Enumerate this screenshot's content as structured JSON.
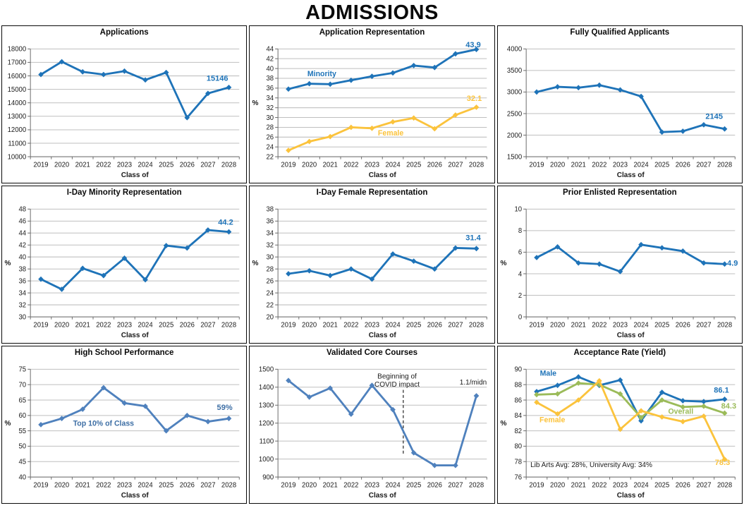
{
  "page_title": "ADMISSIONS",
  "palette": {
    "bright_blue": "#1E73B8",
    "muted_blue": "#4F81BD",
    "gold": "#FBC33C",
    "green": "#9BBB59",
    "gridline": "#BFBFBF",
    "axis": "#6E6E6E",
    "text": "#1a1a1a"
  },
  "chart_data": [
    {
      "type": "line",
      "title": "Applications",
      "xlabel": "Class of",
      "ylabel": "",
      "ylim": [
        10000,
        18000
      ],
      "ystep": 1000,
      "grid": true,
      "categories": [
        "2019",
        "2020",
        "2021",
        "2022",
        "2023",
        "2024",
        "2025",
        "2026",
        "2027",
        "2028"
      ],
      "series": [
        {
          "name": "Applications",
          "color": "#1E73B8",
          "values": [
            16100,
            17050,
            16300,
            16100,
            16350,
            15700,
            16250,
            12900,
            14700,
            15146
          ]
        }
      ],
      "texts": [
        {
          "text": "15146",
          "x": 8.45,
          "y": 15620,
          "color": "#1E73B8",
          "size": 11
        }
      ]
    },
    {
      "type": "line",
      "title": "Application Representation",
      "xlabel": "Class of",
      "ylabel": "%",
      "ylim": [
        22,
        44
      ],
      "ystep": 2,
      "grid": true,
      "categories": [
        "2019",
        "2020",
        "2021",
        "2022",
        "2023",
        "2024",
        "2025",
        "2026",
        "2027",
        "2028"
      ],
      "series": [
        {
          "name": "Minority",
          "color": "#1E73B8",
          "values": [
            35.8,
            36.9,
            36.8,
            37.6,
            38.4,
            39.1,
            40.6,
            40.2,
            43,
            43.9
          ]
        },
        {
          "name": "Female",
          "color": "#FBC33C",
          "values": [
            23.3,
            25.1,
            26.1,
            28,
            27.8,
            29.1,
            29.9,
            27.7,
            30.5,
            32.1
          ]
        }
      ],
      "texts": [
        {
          "text": "Minority",
          "x": 1.6,
          "y": 38.4,
          "color": "#1E73B8"
        },
        {
          "text": "Female",
          "x": 4.9,
          "y": 26.3,
          "color": "#FBC33C"
        },
        {
          "text": "43.9",
          "x": 8.85,
          "y": 44.35,
          "color": "#1E73B8",
          "size": 11
        },
        {
          "text": "32.1",
          "x": 8.9,
          "y": 33.4,
          "color": "#FBC33C",
          "size": 11
        }
      ]
    },
    {
      "type": "line",
      "title": "Fully Qualified Applicants",
      "xlabel": "Class of",
      "ylabel": "",
      "ylim": [
        1500,
        4000
      ],
      "ystep": 500,
      "grid": true,
      "categories": [
        "2019",
        "2020",
        "2021",
        "2022",
        "2023",
        "2024",
        "2025",
        "2026",
        "2027",
        "2028"
      ],
      "series": [
        {
          "name": "Fully Qualified Applicants",
          "color": "#1E73B8",
          "values": [
            3000,
            3120,
            3100,
            3160,
            3050,
            2900,
            2070,
            2090,
            2240,
            2145
          ]
        }
      ],
      "texts": [
        {
          "text": "2145",
          "x": 8.5,
          "y": 2380,
          "color": "#1E73B8",
          "size": 11
        }
      ]
    },
    {
      "type": "line",
      "title": "I-Day Minority Representation",
      "xlabel": "Class of",
      "ylabel": "%",
      "ylim": [
        30,
        48
      ],
      "ystep": 2,
      "grid": true,
      "categories": [
        "2019",
        "2020",
        "2021",
        "2022",
        "2023",
        "2024",
        "2025",
        "2026",
        "2027",
        "2028"
      ],
      "series": [
        {
          "name": "I-Day Minority",
          "color": "#1E73B8",
          "values": [
            36.3,
            34.6,
            38.1,
            36.9,
            39.8,
            36.2,
            41.9,
            41.5,
            44.5,
            44.2
          ]
        }
      ],
      "texts": [
        {
          "text": "44.2",
          "x": 8.85,
          "y": 45.4,
          "color": "#1E73B8",
          "size": 11
        }
      ]
    },
    {
      "type": "line",
      "title": "I-Day Female Representation",
      "xlabel": "Class of",
      "ylabel": "%",
      "ylim": [
        20,
        38
      ],
      "ystep": 2,
      "grid": true,
      "categories": [
        "2019",
        "2020",
        "2021",
        "2022",
        "2023",
        "2024",
        "2025",
        "2026",
        "2027",
        "2028"
      ],
      "series": [
        {
          "name": "I-Day Female",
          "color": "#1E73B8",
          "values": [
            27.2,
            27.7,
            26.9,
            28,
            26.3,
            30.5,
            29.3,
            28,
            31.5,
            31.4
          ]
        }
      ],
      "texts": [
        {
          "text": "31.4",
          "x": 8.85,
          "y": 32.8,
          "color": "#1E73B8",
          "size": 11
        }
      ]
    },
    {
      "type": "line",
      "title": "Prior Enlisted Representation",
      "xlabel": "Class of",
      "ylabel": "%",
      "ylim": [
        0,
        10
      ],
      "ystep": 2,
      "grid": true,
      "categories": [
        "2019",
        "2020",
        "2021",
        "2022",
        "2023",
        "2024",
        "2025",
        "2026",
        "2027",
        "2028"
      ],
      "series": [
        {
          "name": "Prior Enlisted",
          "color": "#1E73B8",
          "values": [
            5.5,
            6.5,
            5,
            4.9,
            4.2,
            6.7,
            6.4,
            6.1,
            5,
            4.9
          ]
        }
      ],
      "texts": [
        {
          "text": "4.9",
          "x": 9.12,
          "y": 4.75,
          "color": "#1E73B8",
          "size": 11,
          "anchor": "start"
        }
      ]
    },
    {
      "type": "line",
      "title": "High School Performance",
      "xlabel": "Class of",
      "ylabel": "%",
      "ylim": [
        40,
        75
      ],
      "ystep": 5,
      "grid": true,
      "categories": [
        "2019",
        "2020",
        "2021",
        "2022",
        "2023",
        "2024",
        "2025",
        "2026",
        "2027",
        "2028"
      ],
      "series": [
        {
          "name": "Top 10% of Class",
          "color": "#4F81BD",
          "values": [
            57,
            59,
            62,
            69,
            64,
            63,
            55,
            60,
            58,
            59
          ]
        }
      ],
      "texts": [
        {
          "text": "Top 10% of Class",
          "x": 3.0,
          "y": 56.6,
          "color": "#3E6FA5"
        },
        {
          "text": "59%",
          "x": 8.8,
          "y": 61.8,
          "color": "#3E6FA5",
          "size": 11
        }
      ]
    },
    {
      "type": "line",
      "title": "Validated Core Courses",
      "xlabel": "Class of",
      "ylabel": "",
      "ylim": [
        900,
        1500
      ],
      "ystep": 100,
      "grid": true,
      "categories": [
        "2019",
        "2020",
        "2021",
        "2022",
        "2023",
        "2024",
        "2025",
        "2026",
        "2027",
        "2028"
      ],
      "series": [
        {
          "name": "Validated Core Courses",
          "color": "#4F81BD",
          "values": [
            1437,
            1345,
            1395,
            1250,
            1410,
            1275,
            1035,
            965,
            965,
            1352
          ]
        }
      ],
      "dashed_line": {
        "x": 5.5,
        "y1": 1385,
        "y2": 1025
      },
      "texts": [
        {
          "text": "Beginning of",
          "x": 5.2,
          "y": 1449,
          "color": "#1a1a1a",
          "bold": false,
          "size": 10
        },
        {
          "text": "COVID impact",
          "x": 5.2,
          "y": 1402,
          "color": "#1a1a1a",
          "bold": false,
          "size": 10
        },
        {
          "text": "1.1/midn",
          "x": 8.85,
          "y": 1416,
          "color": "#1a1a1a",
          "bold": false,
          "size": 10
        }
      ]
    },
    {
      "type": "line",
      "title": "Acceptance Rate (Yield)",
      "xlabel": "Class of",
      "ylabel": "%",
      "ylim": [
        76,
        90
      ],
      "ystep": 2,
      "grid": true,
      "categories": [
        "2019",
        "2020",
        "2021",
        "2022",
        "2023",
        "2024",
        "2025",
        "2026",
        "2027",
        "2028"
      ],
      "series": [
        {
          "name": "Male",
          "color": "#1E73B8",
          "values": [
            87.1,
            87.9,
            89,
            87.9,
            88.6,
            83.3,
            87,
            85.9,
            85.8,
            86.1
          ]
        },
        {
          "name": "Overall",
          "color": "#9BBB59",
          "values": [
            86.7,
            86.8,
            88.2,
            88,
            86.8,
            83.7,
            86,
            85.1,
            85.2,
            84.3
          ]
        },
        {
          "name": "Female",
          "color": "#FBC33C",
          "values": [
            85.7,
            84.2,
            86,
            88.5,
            82.2,
            84.6,
            83.8,
            83.2,
            83.9,
            78.3
          ]
        }
      ],
      "texts": [
        {
          "text": "Male",
          "x": 0.55,
          "y": 89.15,
          "color": "#1E73B8"
        },
        {
          "text": "Female",
          "x": 0.75,
          "y": 83.1,
          "color": "#FBC33C"
        },
        {
          "text": "Overall",
          "x": 6.9,
          "y": 84.2,
          "color": "#9BBB59"
        },
        {
          "text": "Lib Arts Avg: 28%, University Avg: 34%",
          "x": -0.3,
          "y": 77.3,
          "color": "#1a1a1a",
          "bold": false,
          "size": 10,
          "anchor": "start"
        },
        {
          "text": "86.1",
          "x": 8.85,
          "y": 86.95,
          "color": "#1E73B8",
          "size": 11
        },
        {
          "text": "84.3",
          "x": 9.2,
          "y": 84.9,
          "color": "#9BBB59",
          "size": 11
        },
        {
          "text": "78.3",
          "x": 8.9,
          "y": 77.55,
          "color": "#FBC33C",
          "size": 11
        }
      ]
    }
  ]
}
